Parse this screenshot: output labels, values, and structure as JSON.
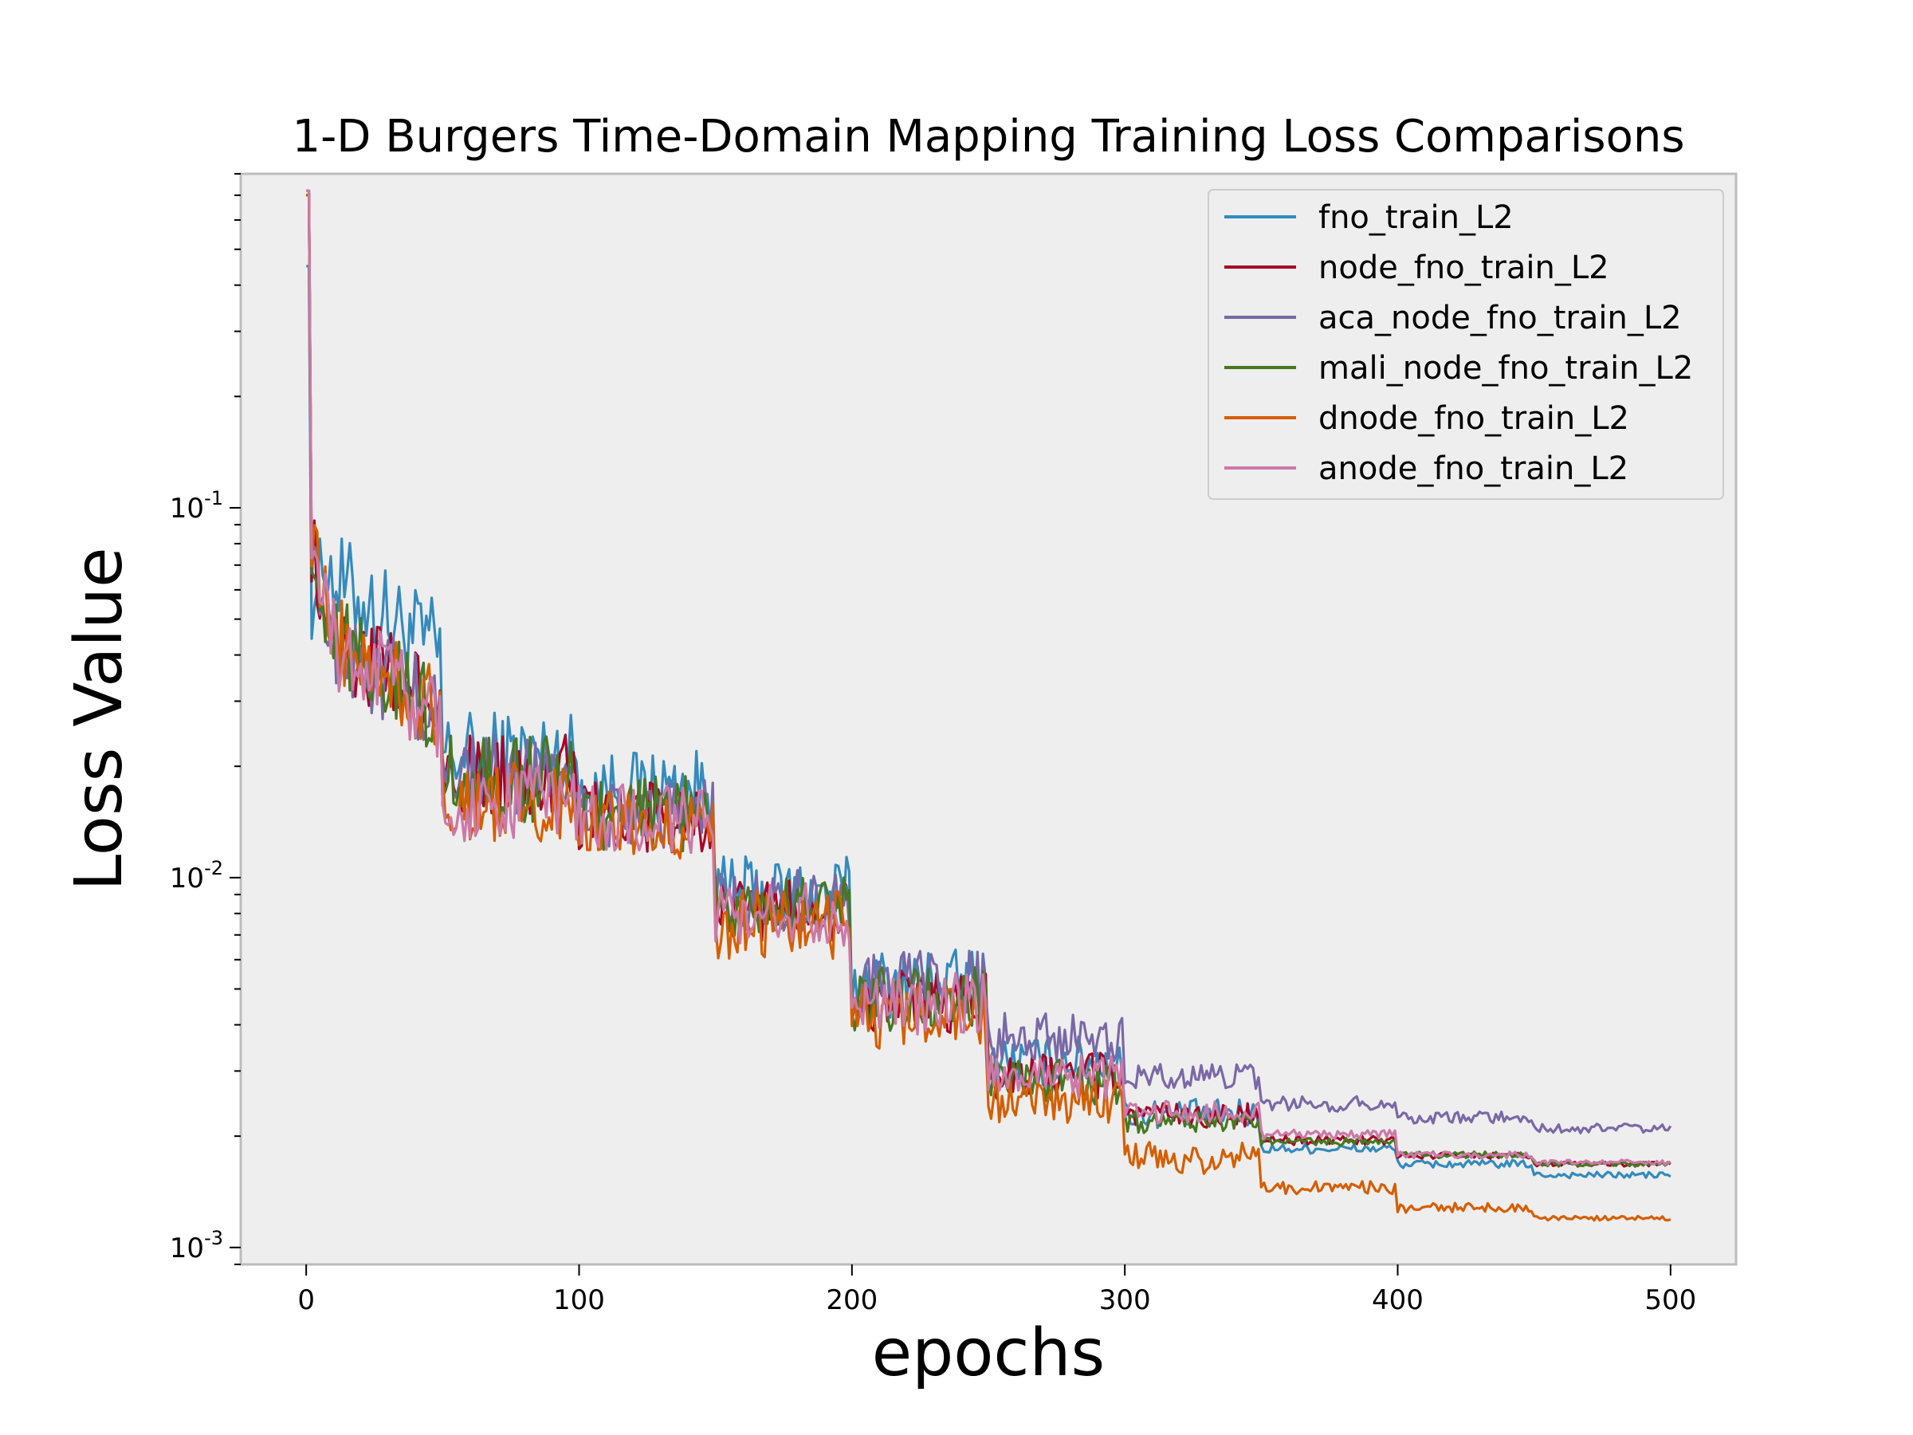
{
  "chart_data": {
    "type": "line",
    "title": "1-D Burgers Time-Domain Mapping Training Loss Comparisons",
    "xlabel": "epochs",
    "ylabel": "Loss Value",
    "xlim": [
      -24,
      524
    ],
    "ylim": [
      0.0009,
      0.8
    ],
    "yscale": "log",
    "grid": false,
    "legend_position": "top-right",
    "background": "#eeeeee",
    "x_ticks": [
      {
        "value": 0,
        "label": "0"
      },
      {
        "value": 100,
        "label": "100"
      },
      {
        "value": 200,
        "label": "200"
      },
      {
        "value": 300,
        "label": "300"
      },
      {
        "value": 400,
        "label": "400"
      },
      {
        "value": 500,
        "label": "500"
      }
    ],
    "y_ticks": [
      {
        "value": 0.001,
        "base": "10",
        "exp": "-3"
      },
      {
        "value": 0.01,
        "base": "10",
        "exp": "-2"
      },
      {
        "value": 0.1,
        "base": "10",
        "exp": "-1"
      }
    ],
    "series": [
      {
        "name": "fno_train_L2",
        "color": "#348abd",
        "start": 0.45,
        "stages": [
          0.065,
          0.0215,
          0.0175,
          0.009,
          0.0052,
          0.0032,
          0.0023,
          0.00185,
          0.00168,
          0.00157
        ],
        "noise": [
          0.32,
          0.28,
          0.24,
          0.24,
          0.22,
          0.16,
          0.09,
          0.03,
          0.025,
          0.02
        ]
      },
      {
        "name": "node_fno_train_L2",
        "color": "#a60628",
        "start": 0.7,
        "stages": [
          0.045,
          0.019,
          0.0145,
          0.0082,
          0.0046,
          0.0029,
          0.00228,
          0.00195,
          0.00177,
          0.00168
        ],
        "noise": [
          0.28,
          0.25,
          0.22,
          0.2,
          0.2,
          0.15,
          0.08,
          0.03,
          0.02,
          0.015
        ]
      },
      {
        "name": "aca_node_fno_train_L2",
        "color": "#7a68a6",
        "start": 0.72,
        "stages": [
          0.044,
          0.019,
          0.0148,
          0.0086,
          0.0052,
          0.0037,
          0.0029,
          0.00245,
          0.00225,
          0.0021
        ],
        "noise": [
          0.28,
          0.25,
          0.22,
          0.2,
          0.2,
          0.15,
          0.08,
          0.05,
          0.04,
          0.03
        ]
      },
      {
        "name": "mali_node_fno_train_L2",
        "color": "#467821",
        "start": 0.7,
        "stages": [
          0.045,
          0.0185,
          0.0148,
          0.0083,
          0.0047,
          0.0028,
          0.00218,
          0.00193,
          0.00178,
          0.00168
        ],
        "noise": [
          0.28,
          0.27,
          0.24,
          0.2,
          0.2,
          0.14,
          0.07,
          0.025,
          0.02,
          0.015
        ]
      },
      {
        "name": "dnode_fno_train_L2",
        "color": "#d55e00",
        "start": 0.7,
        "stages": [
          0.045,
          0.016,
          0.0138,
          0.0075,
          0.0042,
          0.0025,
          0.00175,
          0.00145,
          0.00128,
          0.0012
        ],
        "noise": [
          0.28,
          0.25,
          0.22,
          0.22,
          0.2,
          0.14,
          0.1,
          0.04,
          0.03,
          0.015
        ]
      },
      {
        "name": "anode_fno_train_L2",
        "color": "#cc79a7",
        "start": 0.72,
        "stages": [
          0.044,
          0.016,
          0.0145,
          0.008,
          0.0046,
          0.0029,
          0.00232,
          0.00202,
          0.00178,
          0.0017
        ],
        "noise": [
          0.28,
          0.25,
          0.22,
          0.2,
          0.2,
          0.14,
          0.07,
          0.03,
          0.02,
          0.015
        ]
      }
    ]
  }
}
